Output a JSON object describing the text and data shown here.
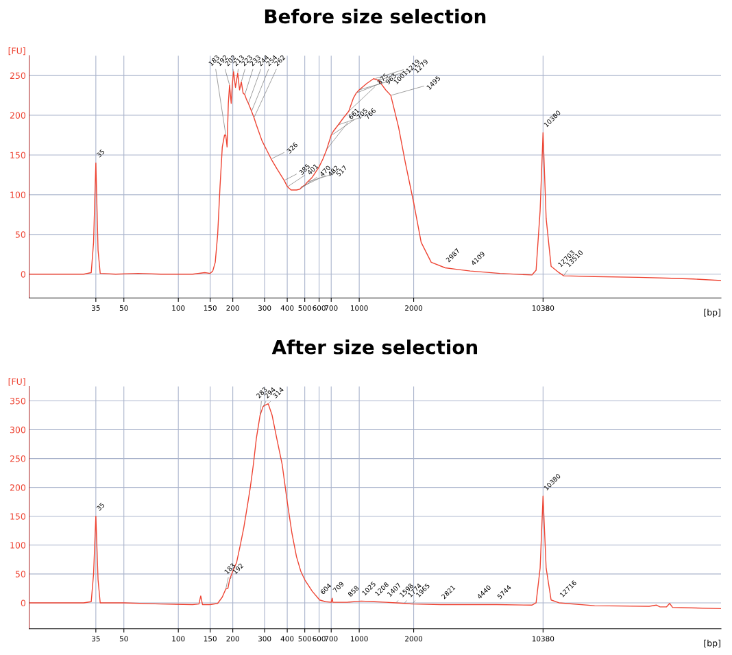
{
  "chart_data": [
    {
      "type": "line",
      "title": "Before size selection",
      "xlabel": "[bp]",
      "ylabel": "[FU]",
      "log": "x",
      "grid": true,
      "marker": "none",
      "line_style": "solid",
      "xlim": [
        15,
        100000
      ],
      "xticks": [
        35,
        50,
        100,
        150,
        200,
        300,
        400,
        500,
        600,
        700,
        1000,
        2000,
        10380
      ],
      "ylim": [
        -30,
        275
      ],
      "yticks": [
        0,
        50,
        100,
        150,
        200,
        250
      ],
      "x": [
        15,
        25,
        30,
        33,
        34,
        35,
        36,
        37,
        45,
        60,
        80,
        100,
        120,
        140,
        150,
        155,
        160,
        165,
        170,
        175,
        180,
        183,
        186,
        189,
        192,
        196,
        199,
        202,
        207,
        213,
        218,
        223,
        228,
        233,
        238,
        244,
        249,
        254,
        262,
        270,
        290,
        310,
        326,
        350,
        385,
        401,
        420,
        450,
        470,
        482,
        500,
        517,
        550,
        600,
        630,
        661,
        700,
        720,
        766,
        820,
        875,
        930,
        963,
        1000,
        1100,
        1200,
        1280,
        1400,
        1495,
        1650,
        1800,
        2000,
        2200,
        2500,
        2987,
        3500,
        4109,
        6000,
        9000,
        9500,
        10000,
        10380,
        10800,
        11500,
        12703,
        13510,
        20000,
        35000,
        50000,
        70000,
        100000
      ],
      "series": [
        {
          "color": "#ee4433",
          "values": [
            0,
            0,
            0,
            2,
            40,
            140,
            30,
            1,
            0,
            1,
            0,
            0,
            0,
            2,
            1,
            4,
            15,
            50,
            110,
            160,
            175,
            175,
            160,
            215,
            238,
            215,
            240,
            255,
            235,
            253,
            232,
            242,
            228,
            226,
            220,
            215,
            210,
            205,
            197,
            188,
            168,
            155,
            145,
            133,
            118,
            110,
            106,
            106,
            107,
            110,
            112,
            116,
            122,
            135,
            145,
            157,
            175,
            180,
            188,
            197,
            205,
            222,
            228,
            232,
            240,
            246,
            244,
            232,
            225,
            185,
            140,
            90,
            40,
            15,
            8,
            6,
            4,
            1,
            -1,
            5,
            80,
            178,
            70,
            10,
            2,
            -2,
            -3,
            -4,
            -5,
            -6,
            -8
          ]
        }
      ],
      "annotations": [
        {
          "text": "35",
          "x": 35,
          "y": 140
        },
        {
          "text": "183",
          "x": 183,
          "y": 175
        },
        {
          "text": "192",
          "x": 192,
          "y": 238
        },
        {
          "text": "202",
          "x": 202,
          "y": 255
        },
        {
          "text": "213",
          "x": 213,
          "y": 253
        },
        {
          "text": "223",
          "x": 223,
          "y": 242
        },
        {
          "text": "233",
          "x": 233,
          "y": 226
        },
        {
          "text": "244",
          "x": 244,
          "y": 215
        },
        {
          "text": "254",
          "x": 254,
          "y": 205
        },
        {
          "text": "262",
          "x": 262,
          "y": 197
        },
        {
          "text": "326",
          "x": 326,
          "y": 145
        },
        {
          "text": "385",
          "x": 385,
          "y": 118
        },
        {
          "text": "401",
          "x": 401,
          "y": 110
        },
        {
          "text": "470",
          "x": 470,
          "y": 107
        },
        {
          "text": "482",
          "x": 482,
          "y": 110
        },
        {
          "text": "517",
          "x": 517,
          "y": 116
        },
        {
          "text": "661",
          "x": 661,
          "y": 157
        },
        {
          "text": "705",
          "x": 705,
          "y": 175
        },
        {
          "text": "766",
          "x": 766,
          "y": 188
        },
        {
          "text": "875",
          "x": 875,
          "y": 205
        },
        {
          "text": "963",
          "x": 963,
          "y": 228
        },
        {
          "text": "1001",
          "x": 1001,
          "y": 232
        },
        {
          "text": "1219",
          "x": 1219,
          "y": 246
        },
        {
          "text": "1279",
          "x": 1279,
          "y": 244
        },
        {
          "text": "1495",
          "x": 1495,
          "y": 225
        },
        {
          "text": "2987",
          "x": 2987,
          "y": 8
        },
        {
          "text": "4109",
          "x": 4109,
          "y": 4
        },
        {
          "text": "10380",
          "x": 10380,
          "y": 178
        },
        {
          "text": "12703",
          "x": 12703,
          "y": 2
        },
        {
          "text": "13510",
          "x": 13510,
          "y": -2
        }
      ]
    },
    {
      "type": "line",
      "title": "After size selection",
      "xlabel": "[bp]",
      "ylabel": "[FU]",
      "log": "x",
      "grid": true,
      "marker": "none",
      "line_style": "solid",
      "xlim": [
        15,
        100000
      ],
      "xticks": [
        35,
        50,
        100,
        150,
        200,
        300,
        400,
        500,
        600,
        700,
        1000,
        2000,
        10380
      ],
      "ylim": [
        -45,
        375
      ],
      "yticks": [
        0,
        50,
        100,
        150,
        200,
        250,
        300,
        350
      ],
      "x": [
        15,
        25,
        30,
        33,
        34,
        35,
        36,
        37,
        50,
        80,
        120,
        130,
        133,
        136,
        150,
        165,
        175,
        183,
        188,
        192,
        200,
        210,
        220,
        230,
        240,
        250,
        260,
        270,
        283,
        294,
        300,
        314,
        330,
        350,
        375,
        400,
        425,
        450,
        475,
        500,
        550,
        604,
        650,
        700,
        709,
        715,
        858,
        1025,
        1208,
        1407,
        1598,
        1774,
        1965,
        2821,
        4440,
        5744,
        9000,
        9500,
        10000,
        10380,
        10800,
        11500,
        12716,
        20000,
        40000,
        44000,
        46000,
        50000,
        52000,
        54000,
        100000
      ],
      "series": [
        {
          "color": "#ee4433",
          "values": [
            0,
            0,
            0,
            2,
            50,
            150,
            40,
            0,
            0,
            -2,
            -3,
            -2,
            12,
            -3,
            -3,
            -1,
            10,
            24,
            25,
            40,
            55,
            70,
            100,
            130,
            165,
            200,
            240,
            285,
            325,
            340,
            342,
            345,
            325,
            285,
            240,
            175,
            120,
            80,
            55,
            40,
            20,
            5,
            2,
            1,
            8,
            1,
            1,
            3,
            2,
            1,
            0,
            -1,
            -2,
            -3,
            -3,
            -3,
            -4,
            0,
            60,
            185,
            60,
            5,
            0,
            -5,
            -6,
            -4,
            -7,
            -7,
            -1,
            -8,
            -10
          ]
        }
      ],
      "annotations": [
        {
          "text": "35",
          "x": 35,
          "y": 150
        },
        {
          "text": "183",
          "x": 183,
          "y": 24
        },
        {
          "text": "192",
          "x": 192,
          "y": 40
        },
        {
          "text": "283",
          "x": 283,
          "y": 325
        },
        {
          "text": "294",
          "x": 294,
          "y": 340
        },
        {
          "text": "314",
          "x": 314,
          "y": 345
        },
        {
          "text": "604",
          "x": 604,
          "y": 5
        },
        {
          "text": "709",
          "x": 709,
          "y": 8
        },
        {
          "text": "858",
          "x": 858,
          "y": 1
        },
        {
          "text": "1025",
          "x": 1025,
          "y": 3
        },
        {
          "text": "1208",
          "x": 1208,
          "y": 2
        },
        {
          "text": "1407",
          "x": 1407,
          "y": 1
        },
        {
          "text": "1598",
          "x": 1598,
          "y": 0
        },
        {
          "text": "1774",
          "x": 1774,
          "y": -1
        },
        {
          "text": "1965",
          "x": 1965,
          "y": -2
        },
        {
          "text": "2821",
          "x": 2821,
          "y": -3
        },
        {
          "text": "4440",
          "x": 4440,
          "y": -3
        },
        {
          "text": "5744",
          "x": 5744,
          "y": -3
        },
        {
          "text": "10380",
          "x": 10380,
          "y": 185
        },
        {
          "text": "12716",
          "x": 12716,
          "y": 0
        }
      ]
    }
  ]
}
